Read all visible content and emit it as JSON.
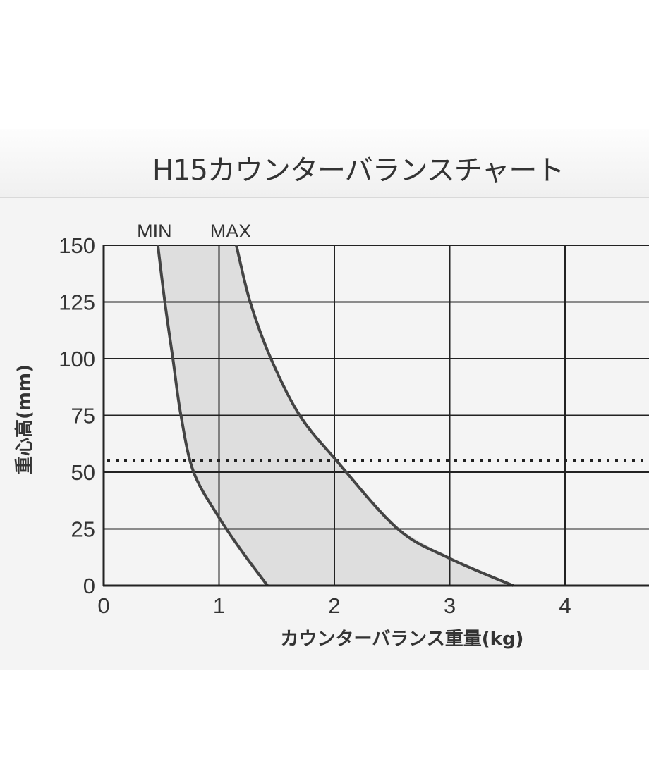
{
  "title": "H15カウンターバランスチャート",
  "chart_data": {
    "type": "area",
    "xlabel": "カウンターバランス重量(kg)",
    "ylabel": "重心高(mm)",
    "xlim": [
      0,
      4
    ],
    "ylim": [
      0,
      150
    ],
    "xticks": [
      "0",
      "1",
      "2",
      "3",
      "4"
    ],
    "yticks": [
      "0",
      "25",
      "50",
      "75",
      "100",
      "125",
      "150"
    ],
    "grid": true,
    "series": [
      {
        "name": "MIN",
        "points": [
          [
            0.47,
            150
          ],
          [
            0.53,
            125
          ],
          [
            0.6,
            100
          ],
          [
            0.67,
            75
          ],
          [
            0.78,
            50
          ],
          [
            1.0,
            30
          ],
          [
            1.2,
            15
          ],
          [
            1.42,
            0
          ]
        ]
      },
      {
        "name": "MAX",
        "points": [
          [
            1.15,
            150
          ],
          [
            1.27,
            125
          ],
          [
            1.45,
            100
          ],
          [
            1.7,
            75
          ],
          [
            2.02,
            55
          ],
          [
            2.55,
            25
          ],
          [
            3.0,
            12
          ],
          [
            3.55,
            0
          ]
        ]
      }
    ],
    "reference_line": {
      "y": 55,
      "style": "dotted"
    },
    "fill_between": true,
    "colors": {
      "band": "#dedede",
      "curve": "#444444",
      "grid": "#222222"
    }
  }
}
